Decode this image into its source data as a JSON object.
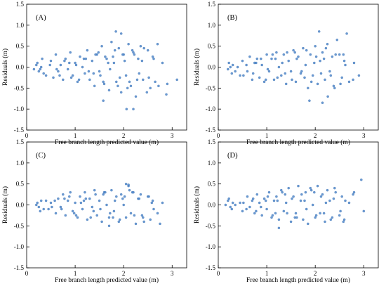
{
  "chart_data": [
    {
      "type": "scatter",
      "panel_label": "(A)",
      "xlabel": "Free branch length predicted value (m)",
      "ylabel": "Residuals (m)",
      "xlim": [
        0,
        3.3
      ],
      "ylim": [
        -1.5,
        1.5
      ],
      "xticks": [
        0,
        1,
        2,
        3
      ],
      "yticks": [
        -1.5,
        -1.0,
        -0.5,
        0.0,
        0.5,
        1.0,
        1.5
      ],
      "grid": false,
      "color": "#4a84c8",
      "x": [
        0.15,
        0.2,
        0.25,
        0.3,
        0.35,
        0.22,
        0.28,
        0.32,
        0.4,
        0.5,
        0.55,
        0.6,
        0.65,
        0.7,
        0.75,
        0.8,
        0.85,
        0.9,
        0.95,
        1.0,
        1.05,
        1.1,
        1.15,
        1.2,
        1.25,
        1.3,
        1.35,
        1.4,
        1.45,
        1.5,
        1.55,
        1.6,
        1.65,
        1.7,
        1.75,
        1.8,
        1.85,
        1.9,
        1.95,
        2.0,
        2.05,
        2.1,
        2.15,
        2.2,
        2.25,
        2.3,
        2.35,
        2.4,
        2.5,
        2.55,
        2.6,
        2.65,
        2.7,
        2.8,
        2.9,
        3.1,
        0.62,
        0.78,
        0.92,
        1.02,
        1.18,
        1.28,
        1.42,
        1.52,
        1.62,
        1.72,
        1.82,
        1.92,
        2.02,
        2.12,
        2.22,
        2.32,
        2.42,
        2.52,
        2.62,
        2.72,
        0.48,
        0.68,
        0.88,
        1.08,
        1.22,
        1.38,
        1.48,
        1.58,
        1.68,
        1.78,
        1.88,
        1.98,
        2.08,
        2.18,
        2.28,
        2.38,
        1.84,
        2.06,
        1.58,
        2.48,
        2.88,
        1.95,
        2.2
      ],
      "y": [
        -0.05,
        0.05,
        -0.1,
        0.0,
        -0.15,
        0.1,
        -0.05,
        0.2,
        -0.2,
        0.15,
        -0.25,
        0.3,
        -0.1,
        0.05,
        -0.3,
        0.2,
        -0.05,
        0.35,
        -0.2,
        0.1,
        -0.35,
        0.25,
        0.0,
        -0.15,
        0.4,
        -0.3,
        0.15,
        -0.45,
        0.3,
        -0.1,
        0.5,
        -0.4,
        0.2,
        -0.55,
        0.6,
        0.1,
        -0.35,
        0.45,
        -0.6,
        0.3,
        -0.2,
        0.55,
        -0.45,
        0.35,
        -0.7,
        0.2,
        0.5,
        -0.3,
        0.4,
        -0.5,
        0.25,
        -0.35,
        0.55,
        0.1,
        -0.4,
        -0.3,
        -0.05,
        0.15,
        -0.25,
        0.05,
        0.2,
        -0.1,
        0.3,
        -0.2,
        0.25,
        -0.05,
        0.4,
        -0.25,
        0.15,
        -0.35,
        0.3,
        -0.15,
        0.45,
        -0.25,
        0.2,
        -0.45,
        0.05,
        -0.2,
        0.1,
        -0.3,
        0.2,
        -0.15,
        0.35,
        -0.35,
        0.1,
        0.25,
        -0.45,
        0.3,
        -0.5,
        0.4,
        -0.3,
        0.15,
        0.85,
        -1.0,
        -0.8,
        -0.6,
        -0.65,
        0.8,
        -1.0
      ]
    },
    {
      "type": "scatter",
      "panel_label": "(B)",
      "xlabel": "Free branch length predicted value (m)",
      "ylabel": "Residuals (m)",
      "xlim": [
        0,
        3.3
      ],
      "ylim": [
        -1.5,
        1.5
      ],
      "xticks": [
        0,
        1,
        2,
        3
      ],
      "yticks": [
        -1.5,
        -1.0,
        -0.5,
        0.0,
        0.5,
        1.0,
        1.5
      ],
      "grid": false,
      "color": "#4a84c8",
      "x": [
        0.2,
        0.25,
        0.3,
        0.35,
        0.22,
        0.28,
        0.4,
        0.45,
        0.5,
        0.6,
        0.65,
        0.7,
        0.75,
        0.8,
        0.85,
        0.9,
        0.95,
        1.0,
        1.05,
        1.1,
        1.15,
        1.2,
        1.25,
        1.3,
        1.35,
        1.4,
        1.45,
        1.5,
        1.55,
        1.6,
        1.65,
        1.7,
        1.75,
        1.8,
        1.85,
        1.9,
        1.95,
        2.0,
        2.05,
        2.1,
        2.15,
        2.2,
        2.25,
        2.3,
        2.35,
        2.4,
        2.5,
        2.55,
        2.6,
        2.7,
        2.8,
        2.9,
        0.58,
        0.72,
        0.88,
        1.02,
        1.12,
        1.22,
        1.32,
        1.42,
        1.52,
        1.62,
        1.72,
        1.82,
        1.92,
        2.02,
        2.12,
        2.22,
        2.32,
        2.42,
        2.52,
        2.62,
        0.52,
        0.78,
        0.98,
        1.18,
        1.38,
        1.58,
        1.78,
        1.98,
        2.18,
        2.38,
        2.58,
        2.78,
        2.08,
        2.26,
        1.88,
        2.45,
        2.65,
        2.15
      ],
      "y": [
        -0.05,
        0.0,
        0.05,
        -0.1,
        0.1,
        -0.15,
        0.0,
        -0.2,
        0.15,
        -0.1,
        0.25,
        -0.3,
        0.1,
        0.2,
        -0.25,
        0.05,
        -0.35,
        0.3,
        -0.1,
        0.2,
        -0.3,
        0.35,
        0.0,
        -0.2,
        0.3,
        -0.4,
        0.15,
        -0.1,
        0.4,
        -0.35,
        0.25,
        -0.15,
        0.45,
        0.05,
        -0.5,
        0.3,
        -0.2,
        0.5,
        -0.4,
        0.15,
        0.35,
        -0.3,
        0.55,
        -0.1,
        0.25,
        -0.5,
        0.3,
        -0.25,
        0.15,
        -0.35,
        0.1,
        -0.2,
        0.05,
        -0.15,
        0.2,
        -0.05,
        0.3,
        -0.25,
        0.1,
        0.35,
        -0.3,
        0.2,
        -0.1,
        0.4,
        -0.35,
        0.25,
        -0.15,
        0.45,
        -0.2,
        0.3,
        -0.4,
        0.05,
        -0.2,
        0.1,
        -0.3,
        0.2,
        -0.15,
        0.35,
        -0.25,
        0.1,
        0.2,
        -0.45,
        0.3,
        -0.3,
        0.85,
        -0.7,
        -0.8,
        0.65,
        0.8,
        -0.85
      ]
    },
    {
      "type": "scatter",
      "panel_label": "(C)",
      "xlabel": "Free branch length predicted value (m)",
      "ylabel": "Residuals (m)",
      "xlim": [
        0,
        3.3
      ],
      "ylim": [
        -1.5,
        1.5
      ],
      "xticks": [
        0,
        1,
        2,
        3
      ],
      "yticks": [
        -1.5,
        -1.0,
        -0.5,
        0.0,
        0.5,
        1.0,
        1.5
      ],
      "grid": false,
      "color": "#4a84c8",
      "x": [
        0.2,
        0.25,
        0.3,
        0.35,
        0.22,
        0.28,
        0.4,
        0.45,
        0.5,
        0.6,
        0.65,
        0.7,
        0.75,
        0.8,
        0.85,
        0.9,
        0.95,
        1.0,
        1.05,
        1.1,
        1.15,
        1.2,
        1.25,
        1.3,
        1.35,
        1.4,
        1.45,
        1.5,
        1.55,
        1.6,
        1.65,
        1.7,
        1.75,
        1.8,
        1.85,
        1.9,
        1.95,
        2.0,
        2.05,
        2.1,
        2.15,
        2.2,
        2.25,
        2.3,
        2.35,
        2.4,
        2.5,
        2.55,
        2.6,
        2.7,
        2.8,
        0.58,
        0.72,
        0.88,
        1.02,
        1.12,
        1.22,
        1.32,
        1.42,
        1.52,
        1.62,
        1.72,
        1.82,
        1.92,
        2.02,
        2.12,
        2.22,
        2.32,
        2.42,
        2.52,
        2.62,
        0.52,
        0.78,
        0.98,
        1.18,
        1.38,
        1.58,
        1.78,
        1.98,
        2.18,
        2.38,
        2.58,
        2.75,
        2.05,
        2.1,
        1.7
      ],
      "y": [
        0.0,
        -0.05,
        0.1,
        -0.1,
        0.05,
        -0.15,
        0.1,
        -0.1,
        0.05,
        -0.2,
        0.15,
        -0.05,
        0.25,
        -0.25,
        0.1,
        0.3,
        -0.15,
        0.05,
        -0.3,
        0.2,
        -0.1,
        0.3,
        -0.35,
        0.15,
        -0.05,
        0.35,
        -0.25,
        0.1,
        -0.4,
        0.3,
        0.0,
        -0.3,
        0.35,
        -0.15,
        0.2,
        -0.4,
        0.25,
        0.0,
        -0.3,
        0.45,
        -0.2,
        0.3,
        -0.45,
        0.15,
        0.25,
        -0.3,
        0.2,
        -0.35,
        0.1,
        -0.2,
        0.05,
        0.1,
        -0.1,
        0.2,
        -0.25,
        0.05,
        0.15,
        -0.3,
        0.25,
        -0.1,
        0.3,
        -0.2,
        0.1,
        -0.35,
        0.2,
        0.35,
        -0.25,
        0.15,
        -0.4,
        0.2,
        -0.1,
        -0.05,
        0.15,
        -0.2,
        0.1,
        -0.15,
        0.25,
        -0.3,
        0.15,
        0.3,
        -0.25,
        0.05,
        -0.45,
        0.5,
        0.48,
        -0.5
      ]
    },
    {
      "type": "scatter",
      "panel_label": "(D)",
      "xlabel": "Free branch length predicted value (m)",
      "ylabel": "Residuals (m)",
      "xlim": [
        0,
        3.3
      ],
      "ylim": [
        -1.5,
        1.5
      ],
      "xticks": [
        0,
        1,
        2,
        3
      ],
      "yticks": [
        -1.5,
        -1.0,
        -0.5,
        0.0,
        0.5,
        1.0,
        1.5
      ],
      "grid": false,
      "color": "#4a84c8",
      "x": [
        0.15,
        0.2,
        0.25,
        0.3,
        0.22,
        0.28,
        0.35,
        0.45,
        0.5,
        0.6,
        0.65,
        0.7,
        0.75,
        0.8,
        0.85,
        0.9,
        0.95,
        1.0,
        1.05,
        1.1,
        1.15,
        1.2,
        1.25,
        1.3,
        1.35,
        1.4,
        1.45,
        1.5,
        1.55,
        1.6,
        1.65,
        1.7,
        1.75,
        1.8,
        1.85,
        1.9,
        1.95,
        2.0,
        2.05,
        2.1,
        2.15,
        2.2,
        2.25,
        2.3,
        2.35,
        2.4,
        2.5,
        2.55,
        2.6,
        2.7,
        2.8,
        3.0,
        0.58,
        0.72,
        0.88,
        1.02,
        1.12,
        1.22,
        1.32,
        1.42,
        1.52,
        1.62,
        1.72,
        1.82,
        1.92,
        2.02,
        2.12,
        2.22,
        2.32,
        2.42,
        2.52,
        2.62,
        0.52,
        0.78,
        0.98,
        1.18,
        1.38,
        1.58,
        1.78,
        1.98,
        2.18,
        2.38,
        2.58,
        2.78,
        2.95,
        1.25
      ],
      "y": [
        0.0,
        0.1,
        -0.05,
        0.05,
        0.15,
        -0.1,
        0.0,
        0.05,
        -0.15,
        0.2,
        -0.05,
        0.1,
        -0.2,
        0.25,
        0.05,
        -0.25,
        0.15,
        -0.1,
        0.3,
        -0.3,
        0.1,
        0.2,
        -0.35,
        0.35,
        -0.15,
        0.05,
        0.4,
        -0.4,
        0.2,
        -0.2,
        0.45,
        0.1,
        -0.35,
        0.3,
        -0.45,
        0.4,
        0.0,
        -0.3,
        0.45,
        -0.2,
        0.25,
        -0.4,
        0.35,
        0.1,
        -0.3,
        0.4,
        -0.25,
        0.2,
        -0.35,
        0.05,
        0.3,
        -0.15,
        -0.1,
        0.15,
        -0.05,
        0.2,
        -0.25,
        0.1,
        0.3,
        -0.2,
        0.15,
        -0.3,
        0.25,
        -0.1,
        0.35,
        -0.25,
        0.2,
        0.05,
        -0.35,
        0.3,
        -0.15,
        0.1,
        0.05,
        -0.15,
        0.1,
        -0.2,
        0.25,
        -0.3,
        0.1,
        0.3,
        -0.2,
        0.15,
        -0.4,
        0.25,
        0.6,
        -0.55
      ]
    }
  ]
}
